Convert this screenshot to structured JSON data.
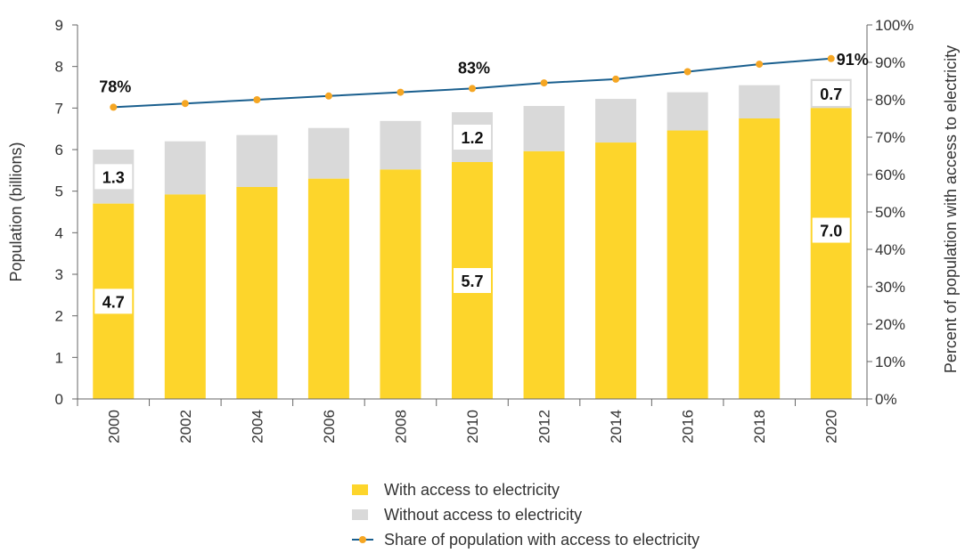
{
  "chart_data": {
    "type": "bar",
    "stacked": true,
    "categories": [
      "2000",
      "2002",
      "2004",
      "2006",
      "2008",
      "2010",
      "2012",
      "2014",
      "2016",
      "2018",
      "2020"
    ],
    "series": [
      {
        "name": "With access to electricity",
        "type": "bar",
        "axis": "left",
        "color": "#fdd52b",
        "values": [
          4.7,
          4.92,
          5.1,
          5.3,
          5.52,
          5.7,
          5.96,
          6.17,
          6.46,
          6.75,
          7.0
        ]
      },
      {
        "name": "Without access to electricity",
        "type": "bar",
        "axis": "left",
        "color": "#d9d9d9",
        "values": [
          1.3,
          1.28,
          1.25,
          1.22,
          1.17,
          1.2,
          1.09,
          1.05,
          0.92,
          0.8,
          0.7
        ]
      },
      {
        "name": "Share of population with access to electricity",
        "type": "line",
        "axis": "right",
        "color": "#1a5f8e",
        "marker_color": "#f5a623",
        "values": [
          78,
          79,
          80,
          81,
          82,
          83,
          84.5,
          85.5,
          87.5,
          89.5,
          91
        ]
      }
    ],
    "ylabel": "Population (billions)",
    "ylim": [
      0,
      9
    ],
    "yticks": [
      "0",
      "1",
      "2",
      "3",
      "4",
      "5",
      "6",
      "7",
      "8",
      "9"
    ],
    "y2label": "Percent of population with access to electricity",
    "y2lim": [
      0,
      100
    ],
    "y2ticks": [
      "0%",
      "10%",
      "20%",
      "30%",
      "40%",
      "50%",
      "60%",
      "70%",
      "80%",
      "90%",
      "100%"
    ],
    "data_labels": [
      {
        "text": "4.7",
        "series": 0,
        "index": 0
      },
      {
        "text": "1.3",
        "series": 1,
        "index": 0
      },
      {
        "text": "5.7",
        "series": 0,
        "index": 5
      },
      {
        "text": "1.2",
        "series": 1,
        "index": 5
      },
      {
        "text": "7.0",
        "series": 0,
        "index": 10
      },
      {
        "text": "0.7",
        "series": 1,
        "index": 10
      },
      {
        "text": "78%",
        "series": 2,
        "index": 0
      },
      {
        "text": "83%",
        "series": 2,
        "index": 5
      },
      {
        "text": "91%",
        "series": 2,
        "index": 10
      }
    ],
    "legend_position": "bottom",
    "grid": false
  },
  "legend": {
    "with_access": "With access to electricity",
    "without_access": "Without access to electricity",
    "share": "Share of population with access to electricity"
  }
}
